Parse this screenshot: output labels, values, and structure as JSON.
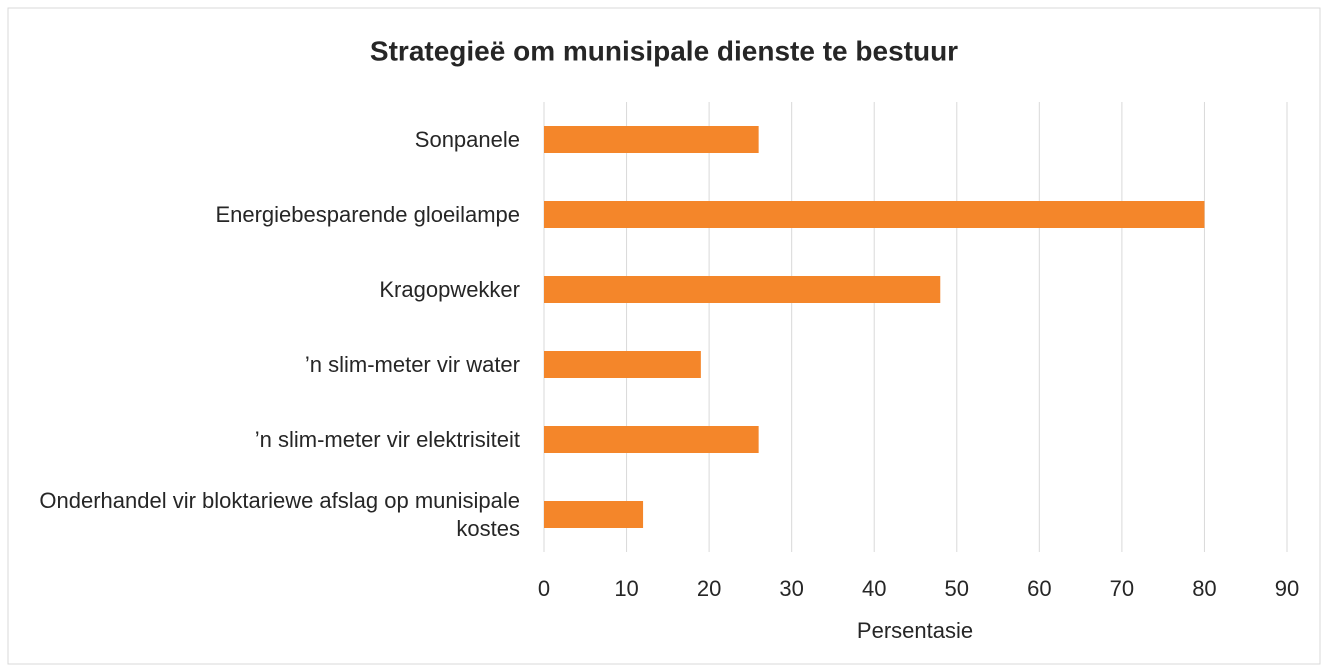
{
  "chart_data": {
    "type": "bar",
    "orientation": "horizontal",
    "title": "Strategieë om munisipale dienste te bestuur",
    "categories": [
      "Sonpanele",
      "Energiebesparende gloeilampe",
      "Kragopwekker",
      "’n slim-meter vir water",
      "’n slim-meter vir elektrisiteit",
      "Onderhandel vir bloktariewe afslag op munisipale kostes"
    ],
    "values": [
      26,
      80,
      48,
      19,
      26,
      12
    ],
    "color": "#f4862a",
    "xlabel": "Persentasie",
    "xlim": [
      0,
      90
    ],
    "xticks": [
      0,
      10,
      20,
      30,
      40,
      50,
      60,
      70,
      80,
      90
    ],
    "grid": true
  }
}
